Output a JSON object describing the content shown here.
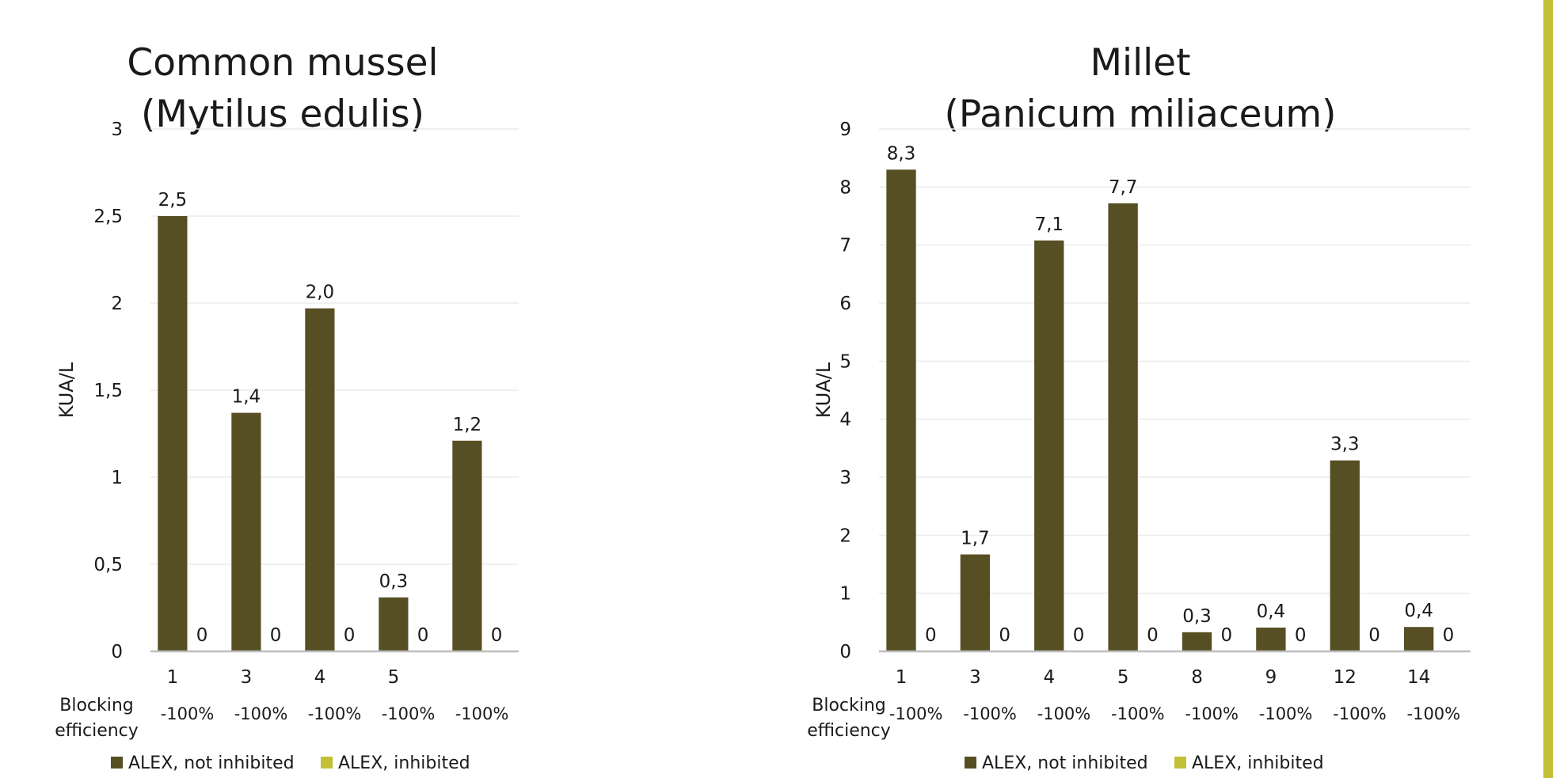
{
  "colors": {
    "not_inhibited": "#574f24",
    "inhibited": "#c3bf36",
    "accent_bar": "#c3bf36",
    "grid": "#ececec",
    "axis": "#bdbdbd",
    "text": "#1a1a1a"
  },
  "chart_data": [
    {
      "type": "bar",
      "title": [
        "Common mussel",
        "(Mytilus edulis)"
      ],
      "ylabel": "KUA/L",
      "ylim": [
        0,
        3
      ],
      "yticks": [
        "0",
        "0,5",
        "1",
        "1,5",
        "2",
        "2,5",
        "3"
      ],
      "grid": true,
      "categories": [
        "1",
        "3",
        "4",
        "5",
        ""
      ],
      "series": [
        {
          "name": "ALEX, not inhibited",
          "values": [
            2.5,
            1.37,
            1.97,
            0.31,
            1.21
          ],
          "labels": [
            "2,5",
            "1,4",
            "2,0",
            "0,3",
            "1,2"
          ]
        },
        {
          "name": "ALEX, inhibited",
          "values": [
            0,
            0,
            0,
            0,
            0
          ],
          "labels": [
            "0",
            "0",
            "0",
            "0",
            "0"
          ]
        }
      ],
      "blocking_label": [
        "Blocking",
        "efficiency"
      ],
      "blocking_efficiency": [
        "-100%",
        "-100%",
        "-100%",
        "-100%",
        "-100%"
      ],
      "legend_position": "bottom"
    },
    {
      "type": "bar",
      "title": [
        "Millet",
        "(Panicum miliaceum)"
      ],
      "ylabel": "KUA/L",
      "ylim": [
        0,
        9
      ],
      "yticks": [
        "0",
        "1",
        "2",
        "3",
        "4",
        "5",
        "6",
        "7",
        "8",
        "9"
      ],
      "grid": true,
      "categories": [
        "1",
        "3",
        "4",
        "5",
        "8",
        "9",
        "12",
        "14"
      ],
      "series": [
        {
          "name": "ALEX, not inhibited",
          "values": [
            8.3,
            1.67,
            7.08,
            7.72,
            0.33,
            0.41,
            3.29,
            0.42
          ],
          "labels": [
            "8,3",
            "1,7",
            "7,1",
            "7,7",
            "0,3",
            "0,4",
            "3,3",
            "0,4"
          ]
        },
        {
          "name": "ALEX, inhibited",
          "values": [
            0,
            0,
            0,
            0,
            0,
            0,
            0,
            0
          ],
          "labels": [
            "0",
            "0",
            "0",
            "0",
            "0",
            "0",
            "0",
            "0"
          ]
        }
      ],
      "blocking_label": [
        "Blocking",
        "efficiency"
      ],
      "blocking_efficiency": [
        "-100%",
        "-100%",
        "-100%",
        "-100%",
        "-100%",
        "-100%",
        "-100%",
        "-100%"
      ],
      "legend_position": "bottom"
    }
  ]
}
